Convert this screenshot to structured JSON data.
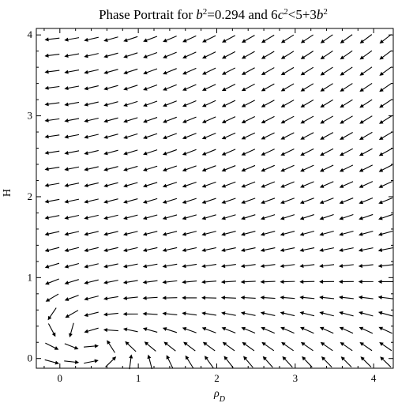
{
  "chart_data": {
    "type": "vector-field",
    "title_parts": [
      {
        "t": "Phase Portrait for ",
        "i": false
      },
      {
        "t": "b",
        "i": true
      },
      {
        "t": "2",
        "sup": true
      },
      {
        "t": "=0.294 and 6",
        "i": false
      },
      {
        "t": "c",
        "i": true
      },
      {
        "t": "2",
        "sup": true
      },
      {
        "t": "<5+3",
        "i": false
      },
      {
        "t": "b",
        "i": true
      },
      {
        "t": "2",
        "sup": true
      }
    ],
    "xlabel": "ρ",
    "xlabel_sub": "D",
    "ylabel": "H",
    "xlim": [
      -0.3,
      4.25
    ],
    "ylim": [
      -0.12,
      4.08
    ],
    "xticks": [
      "0",
      "1",
      "2",
      "3",
      "4"
    ],
    "yticks": [
      "0",
      "1",
      "2",
      "3",
      "4"
    ],
    "b_squared": 0.294,
    "grid_x": [
      -0.1,
      0.15,
      0.4,
      0.65,
      0.9,
      1.15,
      1.4,
      1.65,
      1.9,
      2.15,
      2.4,
      2.65,
      2.9,
      3.15,
      3.4,
      3.65,
      3.9,
      4.15
    ],
    "grid_y": [
      -0.04,
      0.15,
      0.35,
      0.55,
      0.75,
      0.95,
      1.15,
      1.35,
      1.55,
      1.75,
      1.95,
      2.15,
      2.35,
      2.55,
      2.75,
      2.95,
      3.15,
      3.35,
      3.55,
      3.75,
      3.95
    ],
    "arrow_color": "#000000"
  }
}
